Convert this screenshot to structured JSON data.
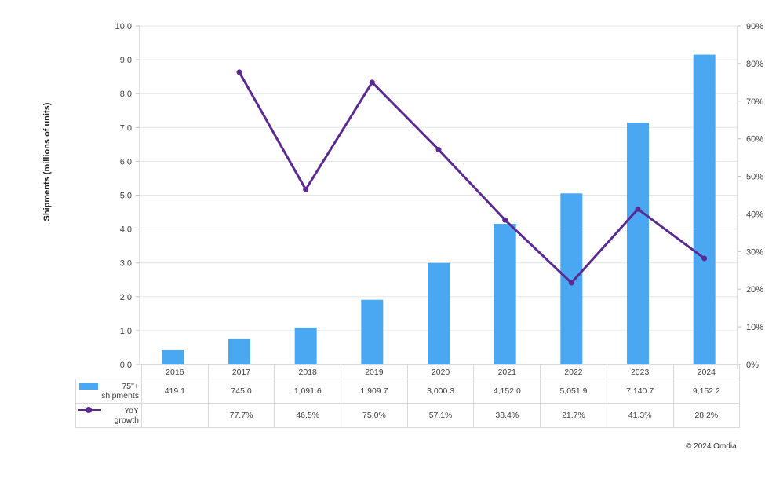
{
  "chart_data": {
    "type": "bar+line",
    "title": "",
    "categories": [
      "2016",
      "2017",
      "2018",
      "2019",
      "2020",
      "2021",
      "2022",
      "2023",
      "2024"
    ],
    "series": [
      {
        "name": "75\"+ shipments",
        "type": "bar",
        "axis": "left",
        "color": "#4aa8f2",
        "values": [
          419.1,
          745.0,
          1091.6,
          1909.7,
          3000.3,
          4152.0,
          5051.9,
          7140.7,
          9152.2
        ],
        "labels": [
          "419.1",
          "745.0",
          "1,091.6",
          "1,909.7",
          "3,000.3",
          "4,152.0",
          "5,051.9",
          "7,140.7",
          "9,152.2"
        ]
      },
      {
        "name": "YoY growth",
        "type": "line",
        "axis": "right",
        "color": "#5b2a91",
        "values": [
          null,
          77.7,
          46.5,
          75.0,
          57.1,
          38.4,
          21.7,
          41.3,
          28.2
        ],
        "labels": [
          "",
          "77.7%",
          "46.5%",
          "75.0%",
          "57.1%",
          "38.4%",
          "21.7%",
          "41.3%",
          "28.2%"
        ]
      }
    ],
    "ylabel": "Shipments (millions of units)",
    "ylim": [
      0,
      10
    ],
    "yticks": [
      "0.0",
      "1.0",
      "2.0",
      "3.0",
      "4.0",
      "5.0",
      "6.0",
      "7.0",
      "8.0",
      "9.0",
      "10.0"
    ],
    "y2lim": [
      0,
      90
    ],
    "y2ticks": [
      "0%",
      "10%",
      "20%",
      "30%",
      "40%",
      "50%",
      "60%",
      "70%",
      "80%",
      "90%"
    ],
    "grid": true,
    "legend_position": "data-table"
  },
  "table": {
    "row1_label_a": "75\"+",
    "row1_label_b": "shipments",
    "row2_label_a": "YoY",
    "row2_label_b": "growth"
  },
  "footer": {
    "copyright": "© 2024 Omdia"
  }
}
